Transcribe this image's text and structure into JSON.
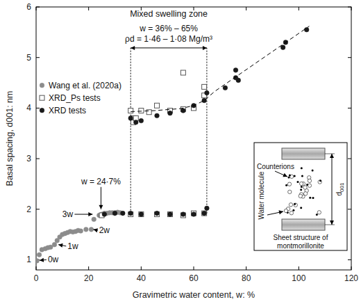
{
  "chart_data": {
    "type": "scatter",
    "title": "Mixed swelling zone",
    "x_label": "Gravimetric water content, w: %",
    "y_label": "Basal spacing, d001: nm",
    "xlim": [
      0,
      120
    ],
    "ylim": [
      0.8,
      6
    ],
    "xticks": [
      0,
      20,
      40,
      60,
      80,
      100,
      120
    ],
    "yticks": [
      1,
      2,
      3,
      4,
      5,
      6
    ],
    "grid": false,
    "legend": "top-left",
    "series": [
      {
        "name": "Wang et al. (2020a)",
        "color": "#8c8c8c",
        "marker": "circle",
        "x": [
          0.3,
          1.2,
          2.2,
          3.5,
          4.5,
          5.5,
          7,
          8,
          9,
          10,
          11,
          12,
          13,
          14,
          15,
          16,
          17,
          19,
          21,
          22,
          24,
          25,
          26,
          27,
          28,
          29,
          30,
          31,
          32
        ],
        "values": [
          0.98,
          1.1,
          1.2,
          1.22,
          1.24,
          1.25,
          1.3,
          1.38,
          1.45,
          1.5,
          1.52,
          1.54,
          1.56,
          1.55,
          1.56,
          1.58,
          1.57,
          1.6,
          1.6,
          1.8,
          1.88,
          1.9,
          1.92,
          1.92,
          1.93,
          1.93,
          1.93,
          1.94,
          1.93
        ]
      },
      {
        "name": "XRD_Ps tests",
        "color": "#555555",
        "marker": "square",
        "x": [
          25,
          36,
          40,
          46,
          51,
          56,
          60,
          64,
          36,
          37,
          37,
          38,
          40,
          43,
          46,
          51,
          56,
          56,
          60,
          64,
          64
        ],
        "values": [
          1.88,
          1.9,
          1.9,
          1.9,
          1.9,
          1.88,
          1.92,
          1.92,
          3.95,
          3.8,
          3.72,
          3.8,
          3.95,
          3.92,
          4.05,
          3.95,
          4.7,
          3.98,
          4.0,
          4.42,
          4.25
        ]
      },
      {
        "name": "XRD tests",
        "color": "#1a1a1a",
        "marker": "circle",
        "x": [
          26,
          30,
          33,
          36,
          40,
          46,
          51,
          56,
          60,
          64,
          65,
          36,
          38,
          40,
          46,
          51,
          56,
          60,
          64,
          65,
          72,
          76,
          76,
          77,
          94,
          95,
          103
        ],
        "values": [
          1.9,
          1.92,
          1.92,
          1.92,
          1.9,
          1.92,
          1.9,
          1.9,
          1.9,
          1.92,
          2.02,
          3.8,
          3.72,
          3.75,
          3.85,
          3.9,
          3.95,
          4.05,
          4.15,
          4.3,
          4.4,
          4.75,
          4.6,
          4.55,
          5.2,
          5.3,
          5.55
        ]
      },
      {
        "type": "line",
        "line_style": "dashed",
        "color": "#000000",
        "x": [
          36,
          45,
          55,
          60,
          64,
          68,
          104
        ],
        "values": [
          3.93,
          3.95,
          3.99,
          4.05,
          4.15,
          4.33,
          5.62
        ]
      }
    ],
    "annotations": [
      {
        "text": "w = 24·7%",
        "x": 24.7,
        "y": 2.55,
        "point": [
          24.7,
          2.0
        ]
      },
      {
        "text": "3w",
        "x": 12,
        "y": 1.9,
        "point": [
          21.5,
          1.9
        ]
      },
      {
        "text": "2w",
        "x": 26,
        "y": 1.58,
        "point": [
          21.8,
          1.6
        ]
      },
      {
        "text": "1w",
        "x": 14,
        "y": 1.27,
        "point": [
          8.5,
          1.3
        ]
      },
      {
        "text": "0w",
        "x": 6.5,
        "y": 1.0,
        "point": [
          1.3,
          0.99
        ]
      }
    ],
    "bracket": {
      "x": [
        36,
        65
      ],
      "y": [
        1.92,
        5.19
      ],
      "labels": [
        "w = 36% – 65%",
        "ρd = 1·46 – 1·08 Mg/m³"
      ]
    },
    "inset_labels": {
      "counterions": "Counterions",
      "water": "Water molecule",
      "sheet": "Sheet structure of montmorillonite",
      "spacing": "d001"
    }
  }
}
